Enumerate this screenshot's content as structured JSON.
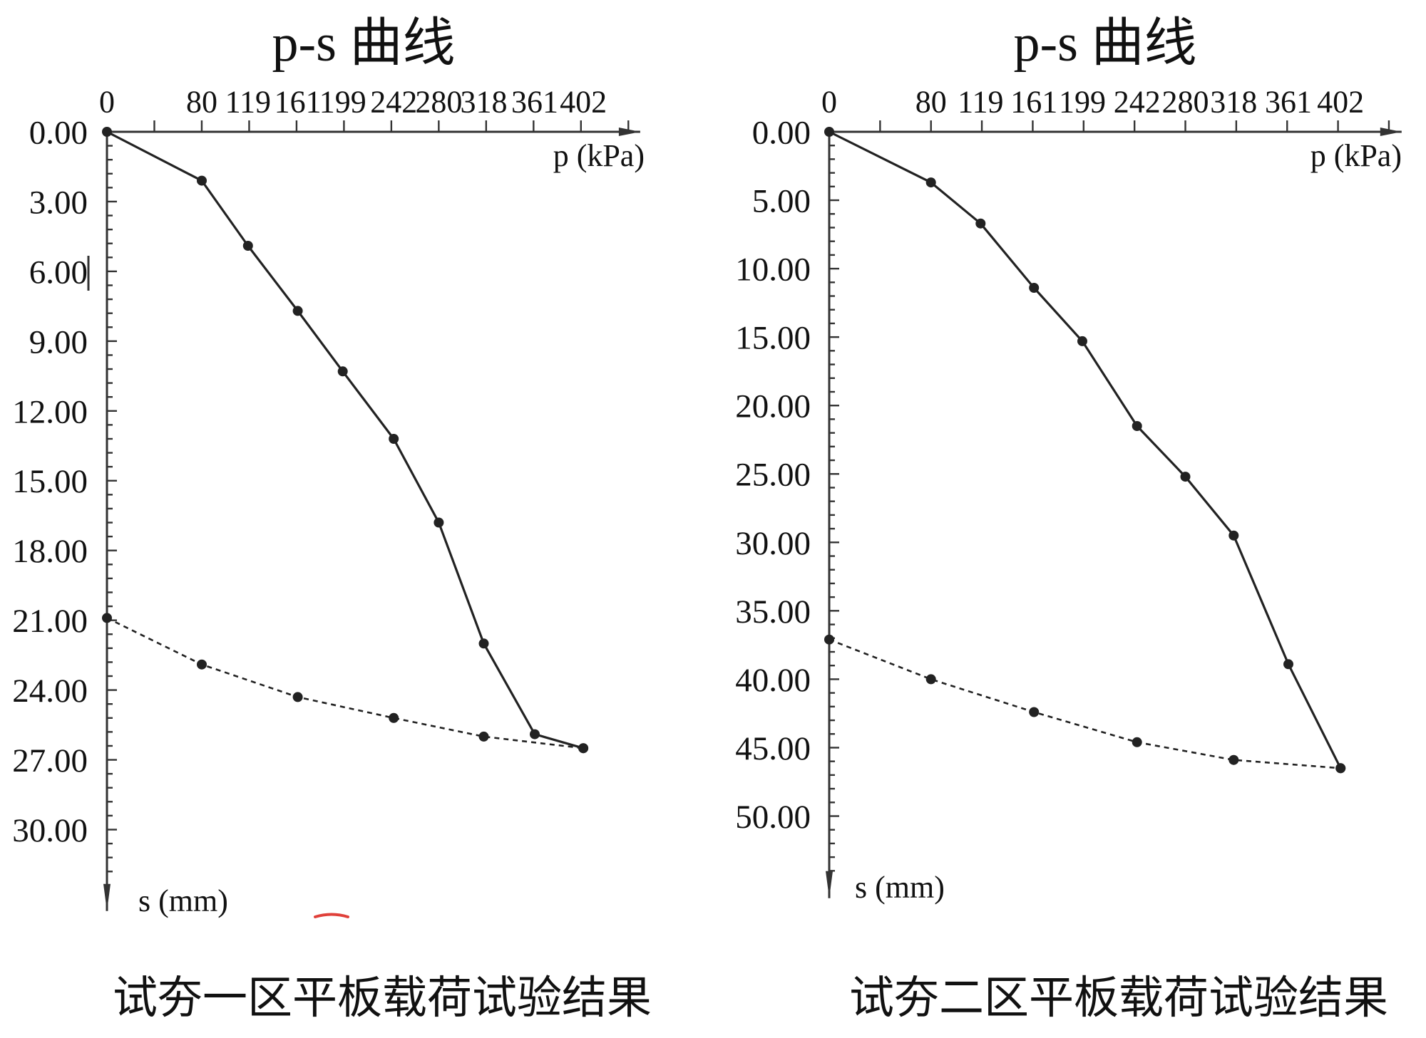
{
  "chart_data": [
    {
      "type": "line",
      "title": "p-s 曲线",
      "caption": "试夯一区平板载荷试验结果",
      "xlabel": "p (kPa)",
      "ylabel": "s (mm)",
      "x_axis_position": "top",
      "y_axis_inverted": true,
      "xlim": [
        0,
        450
      ],
      "ylim": [
        0,
        33.5
      ],
      "x_tick_labels": [
        "0",
        "80",
        "119",
        "161",
        "199",
        "242",
        "280",
        "318",
        "361",
        "402"
      ],
      "y_tick_labels": [
        "0.00",
        "3.00",
        "6.00",
        "9.00",
        "12.00",
        "15.00",
        "18.00",
        "21.00",
        "24.00",
        "27.00",
        "30.00"
      ],
      "x_minor_tick_step": 40,
      "y_minor_tick_step": 0.6,
      "grid": false,
      "line_color": "#222222",
      "series": [
        {
          "line_style": "solid",
          "x": [
            0,
            80,
            119,
            161,
            199,
            242,
            280,
            318,
            361,
            402
          ],
          "y": [
            0,
            2.1,
            4.9,
            7.7,
            10.3,
            13.2,
            16.8,
            22.0,
            25.9,
            26.5
          ]
        },
        {
          "line_style": "dashed",
          "x": [
            0,
            80,
            161,
            242,
            318,
            402
          ],
          "y": [
            20.9,
            22.9,
            24.3,
            25.2,
            26.0,
            26.5
          ]
        }
      ]
    },
    {
      "type": "line",
      "title": "p-s 曲线",
      "caption": "试夯二区平板载荷试验结果",
      "xlabel": "p (kPa)",
      "ylabel": "s (mm)",
      "x_axis_position": "top",
      "y_axis_inverted": true,
      "xlim": [
        0,
        450
      ],
      "ylim": [
        0,
        56
      ],
      "x_tick_labels": [
        "0",
        "80",
        "119",
        "161",
        "199",
        "242",
        "280",
        "318",
        "361",
        "402"
      ],
      "y_tick_labels": [
        "0.00",
        "5.00",
        "10.00",
        "15.00",
        "20.00",
        "25.00",
        "30.00",
        "35.00",
        "40.00",
        "45.00",
        "50.00"
      ],
      "x_minor_tick_step": 40,
      "y_minor_tick_step": 1,
      "grid": false,
      "line_color": "#222222",
      "series": [
        {
          "line_style": "solid",
          "x": [
            0,
            80,
            119,
            161,
            199,
            242,
            280,
            318,
            361,
            402
          ],
          "y": [
            0,
            3.7,
            6.7,
            11.4,
            15.3,
            21.5,
            25.2,
            29.5,
            38.9,
            46.5
          ]
        },
        {
          "line_style": "dashed",
          "x": [
            0,
            80,
            161,
            242,
            318,
            402
          ],
          "y": [
            37.1,
            40.0,
            42.4,
            44.6,
            45.9,
            46.5
          ]
        }
      ]
    }
  ]
}
